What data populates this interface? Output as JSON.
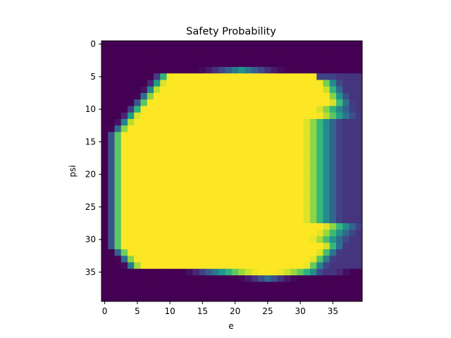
{
  "chart_data": {
    "type": "heatmap",
    "title": "Safety Probability",
    "xlabel": "e",
    "ylabel": "psi",
    "x_ticks": [
      0,
      5,
      10,
      15,
      20,
      25,
      30,
      35
    ],
    "y_ticks": [
      0,
      5,
      10,
      15,
      20,
      25,
      30,
      35
    ],
    "rows": 40,
    "cols": 40,
    "origin": "upper",
    "value_range": [
      0,
      1
    ],
    "colormap": "viridis",
    "grid": false,
    "region_description": "High-safety (yellow, ~1.0) blob spanning roughly psi 4-36 and e 2-37; dark purple (~0) border; teal/green gradient transitions at left edge (e 0-3) and right edge (e 30-39), especially upper-right (psi 5-12) and lower-right (psi 28-35)"
  },
  "colors": {
    "low": "#440154",
    "high": "#fde725"
  }
}
